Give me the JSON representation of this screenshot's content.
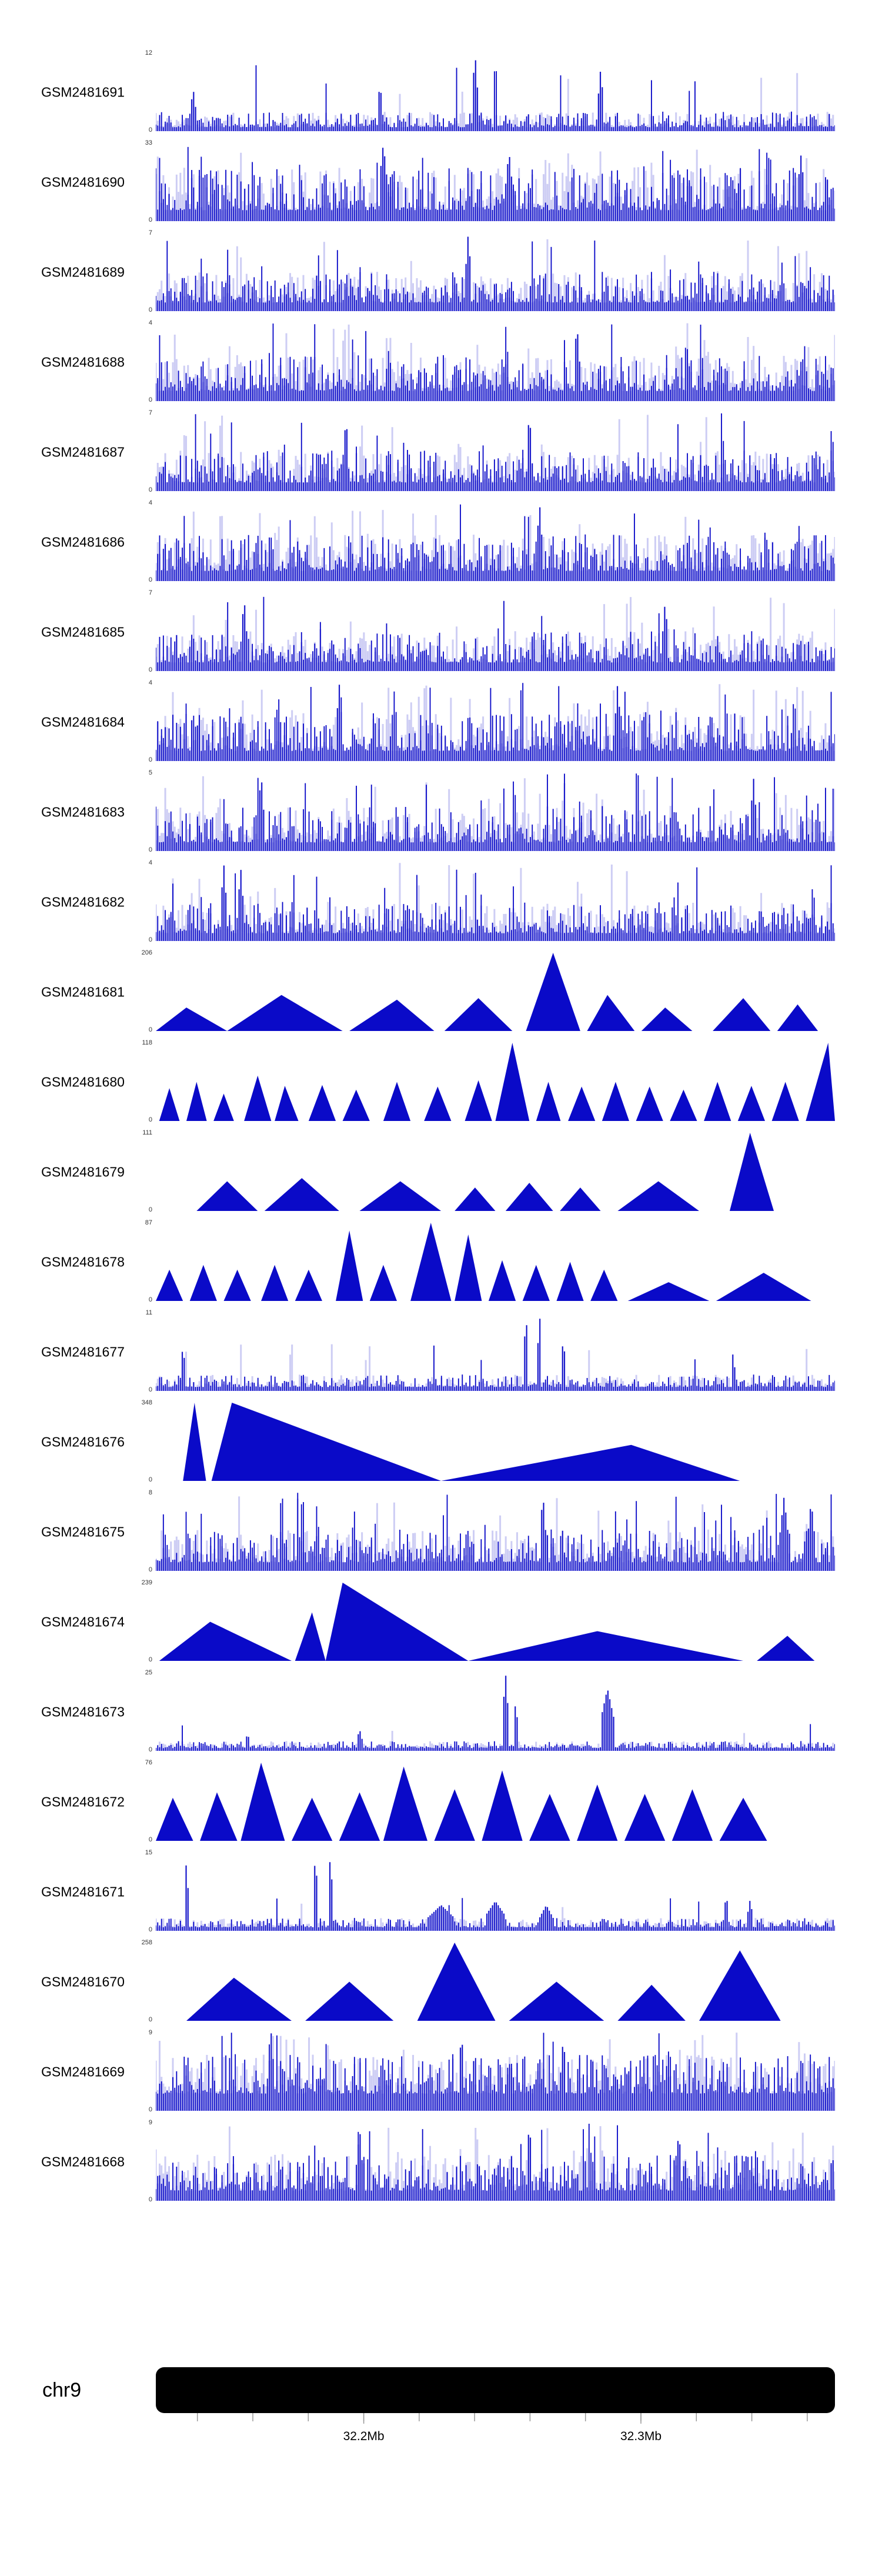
{
  "colors": {
    "signal": "#0a0ac8",
    "halo": "#9090e6",
    "ideogram": "#000000",
    "tick": "#999999",
    "axis_text": "#000000"
  },
  "chromosome": {
    "name": "chr9"
  },
  "chart_data": {
    "type": "area",
    "title": "",
    "description": "Stacked genome-browser signal tracks (GSM samples) over a region of chr9; spiky coverage tracks and triangular peak tracks, all in blue, with a black chromosome ideogram bar and Mb ruler at bottom.",
    "x_axis": {
      "chromosome": "chr9",
      "region_mb": [
        32.125,
        32.37
      ],
      "major_ticks": [
        {
          "mb": 32.2,
          "label": "32.2Mb"
        },
        {
          "mb": 32.3,
          "label": "32.3Mb"
        }
      ],
      "minor_ticks_mb": [
        32.14,
        32.16,
        32.18,
        32.2,
        32.22,
        32.24,
        32.26,
        32.28,
        32.3,
        32.32,
        32.34,
        32.36
      ]
    },
    "tracks": [
      {
        "name": "GSM2481691",
        "ymax": 12,
        "ymin": 0,
        "style": "spikes",
        "render": {
          "seed": 1,
          "n": 360,
          "base": 0.05,
          "amp": 0.2,
          "tall_prob": 0.02,
          "tall_amp": 0.85,
          "features": [
            [
              0.055,
              0.55,
              0.004
            ],
            [
              0.33,
              0.6,
              0.004
            ],
            [
              0.47,
              1.0,
              0.004
            ],
            [
              0.655,
              0.8,
              0.004
            ]
          ]
        }
      },
      {
        "name": "GSM2481690",
        "ymax": 33,
        "ymin": 0,
        "style": "spikes",
        "render": {
          "seed": 2,
          "n": 360,
          "base": 0.14,
          "amp": 0.55,
          "tall_prob": 0.05,
          "tall_amp": 1.0,
          "features": [
            [
              0.335,
              1.0,
              0.006
            ],
            [
              0.52,
              0.9,
              0.005
            ],
            [
              0.95,
              0.85,
              0.005
            ]
          ]
        }
      },
      {
        "name": "GSM2481689",
        "ymax": 7,
        "ymin": 0,
        "style": "spikes",
        "render": {
          "seed": 3,
          "n": 360,
          "base": 0.11,
          "amp": 0.4,
          "tall_prob": 0.04,
          "tall_amp": 0.95,
          "features": [
            [
              0.46,
              1.0,
              0.004
            ]
          ]
        }
      },
      {
        "name": "GSM2481688",
        "ymax": 4,
        "ymin": 0,
        "style": "spikes",
        "render": {
          "seed": 4,
          "n": 360,
          "base": 0.13,
          "amp": 0.46,
          "tall_prob": 0.05,
          "tall_amp": 1.0,
          "features": [
            [
              0.62,
              1.0,
              0.004
            ]
          ]
        }
      },
      {
        "name": "GSM2481687",
        "ymax": 7,
        "ymin": 0,
        "style": "spikes",
        "render": {
          "seed": 5,
          "n": 360,
          "base": 0.11,
          "amp": 0.42,
          "tall_prob": 0.05,
          "tall_amp": 1.0,
          "features": [
            [
              0.28,
              0.95,
              0.004
            ],
            [
              0.55,
              1.0,
              0.004
            ]
          ]
        }
      },
      {
        "name": "GSM2481686",
        "ymax": 4,
        "ymin": 0,
        "style": "spikes",
        "render": {
          "seed": 6,
          "n": 360,
          "base": 0.13,
          "amp": 0.46,
          "tall_prob": 0.06,
          "tall_amp": 1.0,
          "features": [
            [
              0.565,
              1.0,
              0.004
            ]
          ]
        }
      },
      {
        "name": "GSM2481685",
        "ymax": 7,
        "ymin": 0,
        "style": "spikes",
        "render": {
          "seed": 7,
          "n": 360,
          "base": 0.11,
          "amp": 0.4,
          "tall_prob": 0.05,
          "tall_amp": 0.95,
          "features": [
            [
              0.13,
              0.95,
              0.004
            ],
            [
              0.75,
              0.9,
              0.004
            ]
          ]
        }
      },
      {
        "name": "GSM2481684",
        "ymax": 4,
        "ymin": 0,
        "style": "spikes",
        "render": {
          "seed": 8,
          "n": 360,
          "base": 0.13,
          "amp": 0.48,
          "tall_prob": 0.07,
          "tall_amp": 1.0,
          "features": [
            [
              0.27,
              1.0,
              0.004
            ],
            [
              0.68,
              1.0,
              0.004
            ]
          ]
        }
      },
      {
        "name": "GSM2481683",
        "ymax": 5,
        "ymin": 0,
        "style": "spikes",
        "render": {
          "seed": 9,
          "n": 360,
          "base": 0.11,
          "amp": 0.46,
          "tall_prob": 0.06,
          "tall_amp": 1.0,
          "features": [
            [
              0.155,
              1.0,
              0.004
            ],
            [
              0.88,
              0.95,
              0.004
            ]
          ]
        }
      },
      {
        "name": "GSM2481682",
        "ymax": 4,
        "ymin": 0,
        "style": "spikes",
        "render": {
          "seed": 10,
          "n": 360,
          "base": 0.1,
          "amp": 0.4,
          "tall_prob": 0.05,
          "tall_amp": 1.0,
          "features": [
            [
              0.1,
              1.0,
              0.004
            ],
            [
              0.125,
              0.95,
              0.004
            ]
          ]
        }
      },
      {
        "name": "GSM2481681",
        "ymax": 206,
        "ymin": 0,
        "style": "peaks",
        "peaks": [
          [
            0.0,
            0.045,
            0.105,
            0.3
          ],
          [
            0.105,
            0.185,
            0.275,
            0.46
          ],
          [
            0.285,
            0.355,
            0.41,
            0.4
          ],
          [
            0.425,
            0.475,
            0.525,
            0.42
          ],
          [
            0.545,
            0.585,
            0.625,
            1.0
          ],
          [
            0.635,
            0.665,
            0.705,
            0.46
          ],
          [
            0.715,
            0.75,
            0.79,
            0.3
          ],
          [
            0.82,
            0.865,
            0.905,
            0.42
          ],
          [
            0.915,
            0.945,
            0.975,
            0.34
          ]
        ]
      },
      {
        "name": "GSM2481680",
        "ymax": 118,
        "ymin": 0,
        "style": "peaks",
        "peaks": [
          [
            0.005,
            0.02,
            0.035,
            0.42
          ],
          [
            0.045,
            0.06,
            0.075,
            0.5
          ],
          [
            0.085,
            0.1,
            0.115,
            0.35
          ],
          [
            0.13,
            0.15,
            0.17,
            0.58
          ],
          [
            0.175,
            0.19,
            0.21,
            0.45
          ],
          [
            0.225,
            0.245,
            0.265,
            0.46
          ],
          [
            0.275,
            0.295,
            0.315,
            0.4
          ],
          [
            0.335,
            0.355,
            0.375,
            0.5
          ],
          [
            0.395,
            0.415,
            0.435,
            0.44
          ],
          [
            0.455,
            0.475,
            0.495,
            0.52
          ],
          [
            0.5,
            0.525,
            0.55,
            1.0
          ],
          [
            0.56,
            0.578,
            0.596,
            0.5
          ],
          [
            0.607,
            0.627,
            0.647,
            0.44
          ],
          [
            0.657,
            0.677,
            0.697,
            0.5
          ],
          [
            0.707,
            0.727,
            0.747,
            0.44
          ],
          [
            0.757,
            0.777,
            0.797,
            0.4
          ],
          [
            0.807,
            0.827,
            0.847,
            0.5
          ],
          [
            0.857,
            0.877,
            0.897,
            0.45
          ],
          [
            0.907,
            0.927,
            0.947,
            0.5
          ],
          [
            0.957,
            0.99,
            1.0,
            1.0
          ]
        ]
      },
      {
        "name": "GSM2481679",
        "ymax": 111,
        "ymin": 0,
        "style": "peaks",
        "peaks": [
          [
            0.06,
            0.105,
            0.15,
            0.38
          ],
          [
            0.16,
            0.215,
            0.27,
            0.42
          ],
          [
            0.3,
            0.36,
            0.42,
            0.38
          ],
          [
            0.44,
            0.47,
            0.5,
            0.3
          ],
          [
            0.515,
            0.55,
            0.585,
            0.36
          ],
          [
            0.595,
            0.625,
            0.655,
            0.3
          ],
          [
            0.68,
            0.74,
            0.8,
            0.38
          ],
          [
            0.845,
            0.875,
            0.91,
            1.0
          ]
        ]
      },
      {
        "name": "GSM2481678",
        "ymax": 87,
        "ymin": 0,
        "style": "peaks",
        "peaks": [
          [
            0.0,
            0.02,
            0.04,
            0.4
          ],
          [
            0.05,
            0.07,
            0.09,
            0.46
          ],
          [
            0.1,
            0.12,
            0.14,
            0.4
          ],
          [
            0.155,
            0.175,
            0.195,
            0.46
          ],
          [
            0.205,
            0.225,
            0.245,
            0.4
          ],
          [
            0.265,
            0.285,
            0.305,
            0.9
          ],
          [
            0.315,
            0.335,
            0.355,
            0.46
          ],
          [
            0.375,
            0.405,
            0.435,
            1.0
          ],
          [
            0.44,
            0.46,
            0.48,
            0.85
          ],
          [
            0.49,
            0.51,
            0.53,
            0.52
          ],
          [
            0.54,
            0.56,
            0.58,
            0.46
          ],
          [
            0.59,
            0.61,
            0.63,
            0.5
          ],
          [
            0.64,
            0.66,
            0.68,
            0.4
          ],
          [
            0.695,
            0.755,
            0.815,
            0.24
          ],
          [
            0.825,
            0.895,
            0.965,
            0.36
          ]
        ]
      },
      {
        "name": "GSM2481677",
        "ymax": 11,
        "ymin": 0,
        "style": "spikes",
        "render": {
          "seed": 15,
          "n": 360,
          "base": 0.05,
          "amp": 0.16,
          "tall_prob": 0.02,
          "tall_amp": 0.6,
          "features": [
            [
              0.04,
              0.6,
              0.003
            ],
            [
              0.545,
              1.0,
              0.003
            ],
            [
              0.565,
              1.0,
              0.003
            ],
            [
              0.6,
              0.7,
              0.003
            ],
            [
              0.85,
              0.5,
              0.003
            ]
          ]
        }
      },
      {
        "name": "GSM2481676",
        "ymax": 348,
        "ymin": 0,
        "style": "peaks",
        "peaks": [
          [
            0.04,
            0.057,
            0.074,
            1.0
          ],
          [
            0.082,
            0.112,
            0.42,
            1.0
          ],
          [
            0.42,
            0.7,
            0.86,
            0.46
          ]
        ]
      },
      {
        "name": "GSM2481675",
        "ymax": 8,
        "ymin": 0,
        "style": "spikes",
        "render": {
          "seed": 17,
          "n": 360,
          "base": 0.11,
          "amp": 0.42,
          "tall_prob": 0.05,
          "tall_amp": 1.0,
          "features": [
            [
              0.57,
              1.0,
              0.004
            ],
            [
              0.925,
              0.95,
              0.006
            ],
            [
              0.965,
              0.9,
              0.005
            ]
          ]
        }
      },
      {
        "name": "GSM2481674",
        "ymax": 239,
        "ymin": 0,
        "style": "peaks",
        "peaks": [
          [
            0.005,
            0.08,
            0.2,
            0.5
          ],
          [
            0.205,
            0.23,
            0.25,
            0.62
          ],
          [
            0.25,
            0.275,
            0.46,
            1.0
          ],
          [
            0.46,
            0.65,
            0.865,
            0.38
          ],
          [
            0.885,
            0.93,
            0.97,
            0.32
          ]
        ]
      },
      {
        "name": "GSM2481673",
        "ymax": 25,
        "ymin": 0,
        "style": "spikes",
        "render": {
          "seed": 19,
          "n": 360,
          "base": 0.035,
          "amp": 0.09,
          "tall_prob": 0.01,
          "tall_amp": 0.35,
          "features": [
            [
              0.135,
              0.22,
              0.004
            ],
            [
              0.3,
              0.28,
              0.004
            ],
            [
              0.515,
              1.0,
              0.004
            ],
            [
              0.53,
              0.65,
              0.003
            ],
            [
              0.665,
              0.8,
              0.01
            ]
          ]
        }
      },
      {
        "name": "GSM2481672",
        "ymax": 76,
        "ymin": 0,
        "style": "peaks",
        "peaks": [
          [
            0.0,
            0.025,
            0.055,
            0.55
          ],
          [
            0.065,
            0.09,
            0.12,
            0.62
          ],
          [
            0.125,
            0.155,
            0.19,
            1.0
          ],
          [
            0.2,
            0.23,
            0.26,
            0.55
          ],
          [
            0.27,
            0.3,
            0.33,
            0.62
          ],
          [
            0.335,
            0.365,
            0.4,
            0.95
          ],
          [
            0.41,
            0.44,
            0.47,
            0.66
          ],
          [
            0.48,
            0.51,
            0.54,
            0.9
          ],
          [
            0.55,
            0.58,
            0.61,
            0.6
          ],
          [
            0.62,
            0.65,
            0.68,
            0.72
          ],
          [
            0.69,
            0.72,
            0.75,
            0.6
          ],
          [
            0.76,
            0.79,
            0.82,
            0.66
          ],
          [
            0.83,
            0.865,
            0.9,
            0.55
          ]
        ]
      },
      {
        "name": "GSM2481671",
        "ymax": 15,
        "ymin": 0,
        "style": "spikes",
        "render": {
          "seed": 21,
          "n": 360,
          "base": 0.045,
          "amp": 0.12,
          "tall_prob": 0.015,
          "tall_amp": 0.45,
          "features": [
            [
              0.045,
              0.9,
              0.003
            ],
            [
              0.235,
              1.0,
              0.003
            ],
            [
              0.257,
              1.0,
              0.003
            ],
            [
              0.42,
              0.33,
              0.02
            ],
            [
              0.5,
              0.38,
              0.015
            ],
            [
              0.575,
              0.33,
              0.01
            ],
            [
              0.84,
              0.45,
              0.004
            ],
            [
              0.875,
              0.4,
              0.004
            ]
          ]
        }
      },
      {
        "name": "GSM2481670",
        "ymax": 258,
        "ymin": 0,
        "style": "peaks",
        "peaks": [
          [
            0.045,
            0.115,
            0.2,
            0.55
          ],
          [
            0.22,
            0.285,
            0.35,
            0.5
          ],
          [
            0.385,
            0.44,
            0.5,
            1.0
          ],
          [
            0.52,
            0.59,
            0.66,
            0.5
          ],
          [
            0.68,
            0.73,
            0.78,
            0.46
          ],
          [
            0.8,
            0.86,
            0.92,
            0.9
          ]
        ]
      },
      {
        "name": "GSM2481669",
        "ymax": 9,
        "ymin": 0,
        "style": "spikes",
        "render": {
          "seed": 23,
          "n": 360,
          "base": 0.22,
          "amp": 0.5,
          "tall_prob": 0.06,
          "tall_amp": 1.0,
          "features": [
            [
              0.17,
              1.0,
              0.004
            ],
            [
              0.45,
              1.0,
              0.004
            ],
            [
              0.6,
              0.95,
              0.004
            ]
          ]
        }
      },
      {
        "name": "GSM2481668",
        "ymax": 9,
        "ymin": 0,
        "style": "spikes",
        "render": {
          "seed": 24,
          "n": 360,
          "base": 0.13,
          "amp": 0.46,
          "tall_prob": 0.05,
          "tall_amp": 1.0,
          "features": [
            [
              0.3,
              0.95,
              0.004
            ],
            [
              0.55,
              1.0,
              0.004
            ],
            [
              0.77,
              0.9,
              0.004
            ]
          ]
        }
      }
    ]
  }
}
